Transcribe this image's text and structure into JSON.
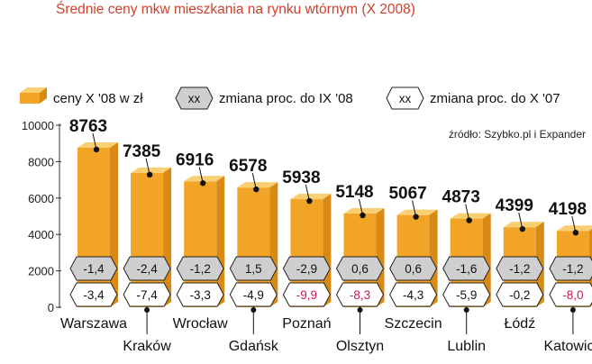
{
  "title": "Średnie ceny mkw mieszkania na rynku wtórnym (X 2008)",
  "legend": {
    "price": "ceny X '08 w zł",
    "badge_text": "xx",
    "change_ix": "zmiana proc. do IX '08",
    "change_x07": "zmiana proc. do X '07"
  },
  "source": "źródło: Szybko.pl i Expander",
  "colors": {
    "title": "#d0402a",
    "bar_front": "#f2a427",
    "bar_top": "#f8cf72",
    "bar_side": "#d98a14",
    "badge_fill": "#cfcfcf",
    "negative_highlight": "#c81a55"
  },
  "chart_data": {
    "type": "bar",
    "ylim": [
      0,
      10000
    ],
    "yticks": [
      0,
      2000,
      4000,
      6000,
      8000,
      10000
    ],
    "categories": [
      "Warszawa",
      "Kraków",
      "Wrocław",
      "Gdańsk",
      "Poznań",
      "Olsztyn",
      "Szczecin",
      "Lublin",
      "Łódź",
      "Katowice"
    ],
    "values": [
      8763,
      7385,
      6916,
      6578,
      5938,
      5148,
      5067,
      4873,
      4399,
      4198
    ],
    "change_ix_08": [
      "-1,4",
      "-2,4",
      "-1,2",
      "1,5",
      "-2,9",
      "0,6",
      "0,6",
      "-1,6",
      "-1,2",
      "-1,2"
    ],
    "change_x_07": [
      "-3,4",
      "-7,4",
      "-3,3",
      "-4,9",
      "-9,9",
      "-8,3",
      "-4,3",
      "-5,9",
      "-0,2",
      "-8,0"
    ],
    "change_x_07_highlight": [
      false,
      false,
      false,
      false,
      true,
      true,
      false,
      false,
      false,
      true
    ]
  }
}
